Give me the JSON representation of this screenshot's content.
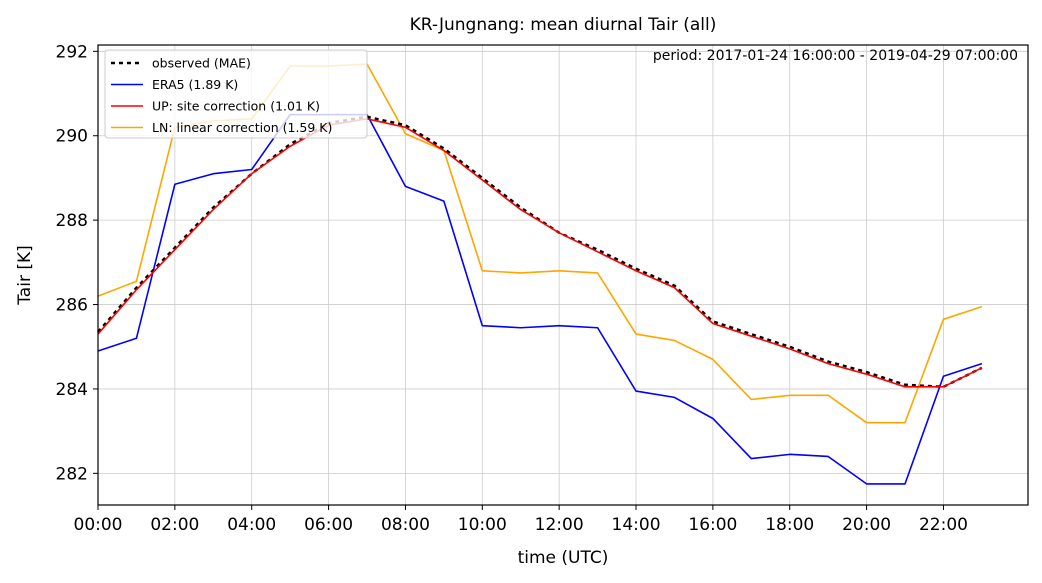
{
  "chart_data": {
    "type": "line",
    "title": "KR-Jungnang: mean diurnal Tair (all)",
    "annotation": "period: 2017-01-24 16:00:00 - 2019-04-29 07:00:00",
    "xlabel": "time (UTC)",
    "ylabel": "Tair [K]",
    "xlim": [
      0,
      24.2
    ],
    "ylim": [
      281.25,
      292.15
    ],
    "grid": true,
    "legend_position": "top-left",
    "x_ticks": [
      {
        "value": 0,
        "label": "00:00"
      },
      {
        "value": 2,
        "label": "02:00"
      },
      {
        "value": 4,
        "label": "04:00"
      },
      {
        "value": 6,
        "label": "06:00"
      },
      {
        "value": 8,
        "label": "08:00"
      },
      {
        "value": 10,
        "label": "10:00"
      },
      {
        "value": 12,
        "label": "12:00"
      },
      {
        "value": 14,
        "label": "14:00"
      },
      {
        "value": 16,
        "label": "16:00"
      },
      {
        "value": 18,
        "label": "18:00"
      },
      {
        "value": 20,
        "label": "20:00"
      },
      {
        "value": 22,
        "label": "22:00"
      }
    ],
    "y_ticks": [
      {
        "value": 282,
        "label": "282"
      },
      {
        "value": 284,
        "label": "284"
      },
      {
        "value": 286,
        "label": "286"
      },
      {
        "value": 288,
        "label": "288"
      },
      {
        "value": 290,
        "label": "290"
      },
      {
        "value": 292,
        "label": "292"
      }
    ],
    "x": [
      0,
      1,
      2,
      3,
      4,
      5,
      6,
      7,
      8,
      9,
      10,
      11,
      12,
      13,
      14,
      15,
      16,
      17,
      18,
      19,
      20,
      21,
      22,
      23
    ],
    "series": [
      {
        "name": "observed (MAE)",
        "color": "#000000",
        "dashed": true,
        "values": [
          285.35,
          286.4,
          287.35,
          288.3,
          289.1,
          289.8,
          290.3,
          290.45,
          290.25,
          289.7,
          289.0,
          288.3,
          287.7,
          287.3,
          286.85,
          286.45,
          285.6,
          285.3,
          285.0,
          284.65,
          284.4,
          284.1,
          284.05,
          284.5
        ]
      },
      {
        "name": "ERA5 (1.89 K)",
        "color": "#0000ff",
        "dashed": false,
        "values": [
          284.9,
          285.2,
          288.85,
          289.1,
          289.2,
          290.5,
          290.5,
          290.5,
          288.8,
          288.45,
          285.5,
          285.45,
          285.5,
          285.45,
          283.95,
          283.8,
          283.3,
          282.35,
          282.45,
          282.4,
          281.75,
          281.75,
          284.3,
          284.6
        ]
      },
      {
        "name": "UP: site correction (1.01 K)",
        "color": "#ff0000",
        "dashed": false,
        "values": [
          285.3,
          286.35,
          287.3,
          288.25,
          289.1,
          289.75,
          290.25,
          290.4,
          290.2,
          289.65,
          288.95,
          288.25,
          287.7,
          287.25,
          286.8,
          286.4,
          285.55,
          285.25,
          284.95,
          284.6,
          284.35,
          284.05,
          284.05,
          284.5
        ]
      },
      {
        "name": "LN: linear correction (1.59 K)",
        "color": "#ffa500",
        "dashed": false,
        "values": [
          286.2,
          286.55,
          290.2,
          290.35,
          290.4,
          291.65,
          291.65,
          291.7,
          290.05,
          289.65,
          286.8,
          286.75,
          286.8,
          286.75,
          285.3,
          285.15,
          284.7,
          283.75,
          283.85,
          283.85,
          283.2,
          283.2,
          285.65,
          285.95
        ]
      }
    ]
  }
}
